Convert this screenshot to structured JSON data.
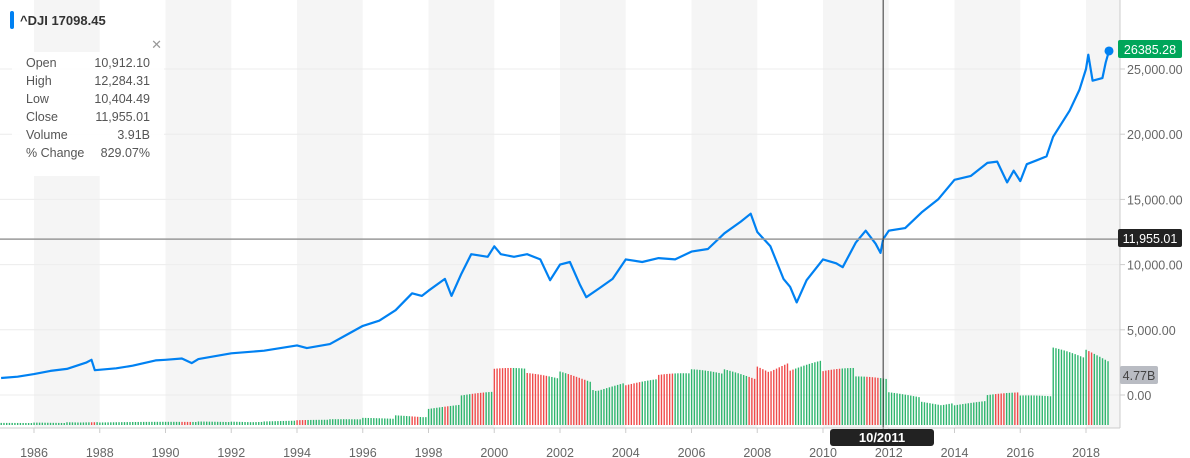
{
  "ticker": {
    "symbol": "^DJI",
    "value": "17098.45",
    "color": "#0081f2"
  },
  "tooltip": {
    "rows": [
      {
        "label": "Open",
        "value": "10,912.10"
      },
      {
        "label": "High",
        "value": "12,284.31"
      },
      {
        "label": "Low",
        "value": "10,404.49"
      },
      {
        "label": "Close",
        "value": "11,955.01"
      },
      {
        "label": "Volume",
        "value": "3.91B"
      },
      {
        "label": "% Change",
        "value": "829.07%"
      }
    ]
  },
  "chart_data": {
    "type": "line",
    "price_series": {
      "color": "#0081f2",
      "x": [
        1985.0,
        1985.5,
        1986.0,
        1986.5,
        1987.0,
        1987.6,
        1987.75,
        1987.85,
        1988.5,
        1989.0,
        1989.7,
        1990.0,
        1990.5,
        1990.8,
        1991.0,
        1992.0,
        1993.0,
        1994.0,
        1994.3,
        1995.0,
        1995.5,
        1996.0,
        1996.5,
        1997.0,
        1997.5,
        1997.8,
        1998.0,
        1998.5,
        1998.7,
        1999.0,
        1999.3,
        1999.8,
        2000.0,
        2000.2,
        2000.6,
        2001.0,
        2001.4,
        2001.7,
        2002.0,
        2002.3,
        2002.6,
        2002.8,
        2003.2,
        2003.6,
        2004.0,
        2004.5,
        2005.0,
        2005.5,
        2006.0,
        2006.5,
        2007.0,
        2007.5,
        2007.8,
        2008.0,
        2008.4,
        2008.8,
        2009.0,
        2009.2,
        2009.5,
        2010.0,
        2010.4,
        2010.6,
        2011.0,
        2011.3,
        2011.6,
        2011.75,
        2011.83,
        2012.0,
        2012.5,
        2013.0,
        2013.5,
        2014.0,
        2014.5,
        2015.0,
        2015.3,
        2015.6,
        2015.8,
        2016.0,
        2016.2,
        2016.5,
        2016.8,
        2017.0,
        2017.5,
        2017.8,
        2018.0,
        2018.07,
        2018.2,
        2018.5,
        2018.6,
        2018.7
      ],
      "y": [
        1300,
        1400,
        1600,
        1850,
        2000,
        2500,
        2700,
        1900,
        2050,
        2250,
        2650,
        2700,
        2800,
        2450,
        2750,
        3200,
        3400,
        3800,
        3600,
        3900,
        4600,
        5300,
        5700,
        6500,
        7800,
        7600,
        8000,
        8900,
        7600,
        9300,
        10800,
        10600,
        11400,
        10800,
        10600,
        10800,
        10400,
        8800,
        10000,
        10200,
        8500,
        7500,
        8200,
        8900,
        10400,
        10200,
        10500,
        10400,
        11000,
        11200,
        12400,
        13300,
        13900,
        12500,
        11400,
        8900,
        8300,
        7100,
        8800,
        10400,
        10100,
        9800,
        11700,
        12600,
        11600,
        10900,
        11955,
        12600,
        12800,
        14000,
        15000,
        16500,
        16800,
        17800,
        17900,
        16300,
        17200,
        16400,
        17700,
        18000,
        18300,
        19800,
        21800,
        23400,
        25000,
        26100,
        24100,
        24300,
        25500,
        26385
      ]
    },
    "volume_series": {
      "unit": "B",
      "years": [
        1985,
        1986,
        1987,
        1988,
        1989,
        1990,
        1991,
        1992,
        1993,
        1994,
        1995,
        1996,
        1997,
        1998,
        1999,
        2000,
        2001,
        2002,
        2003,
        2004,
        2005,
        2006,
        2007,
        2008,
        2009,
        2010,
        2011,
        2012,
        2013,
        2014,
        2015,
        2016,
        2017,
        2018
      ],
      "values": [
        0.2,
        0.25,
        0.35,
        0.3,
        0.3,
        0.3,
        0.35,
        0.4,
        0.45,
        0.5,
        0.55,
        0.7,
        1.1,
        2.2,
        3.2,
        5.4,
        5.0,
        5.8,
        4.8,
        4.5,
        4.9,
        5.3,
        5.8,
        7.5,
        6.5,
        5.4,
        4.6,
        3.3,
        2.8,
        2.5,
        3.1,
        2.8,
        7.6,
        8.6
      ],
      "up_color": "#2fb66f",
      "down_color": "#f04b4b"
    },
    "x_ticks": [
      "1986",
      "1988",
      "1990",
      "1992",
      "1994",
      "1996",
      "1998",
      "2000",
      "2002",
      "2004",
      "2006",
      "2008",
      "2010",
      "2012",
      "2014",
      "2016",
      "2018"
    ],
    "y_ticks": [
      "0.00",
      "5,000.00",
      "10,000.00",
      "15,000.00",
      "20,000.00",
      "25,000.00"
    ],
    "ylim": [
      0,
      26385.28
    ],
    "last_price_tag": {
      "text": "26385.28",
      "color": "#00a65a"
    },
    "crosshair": {
      "price_label": "11,955.01",
      "date_label": "10/2011",
      "price": 11955.01,
      "date": 2011.83
    },
    "volume_tag": {
      "text": "4.77B"
    },
    "grid": true,
    "legend": "none"
  }
}
